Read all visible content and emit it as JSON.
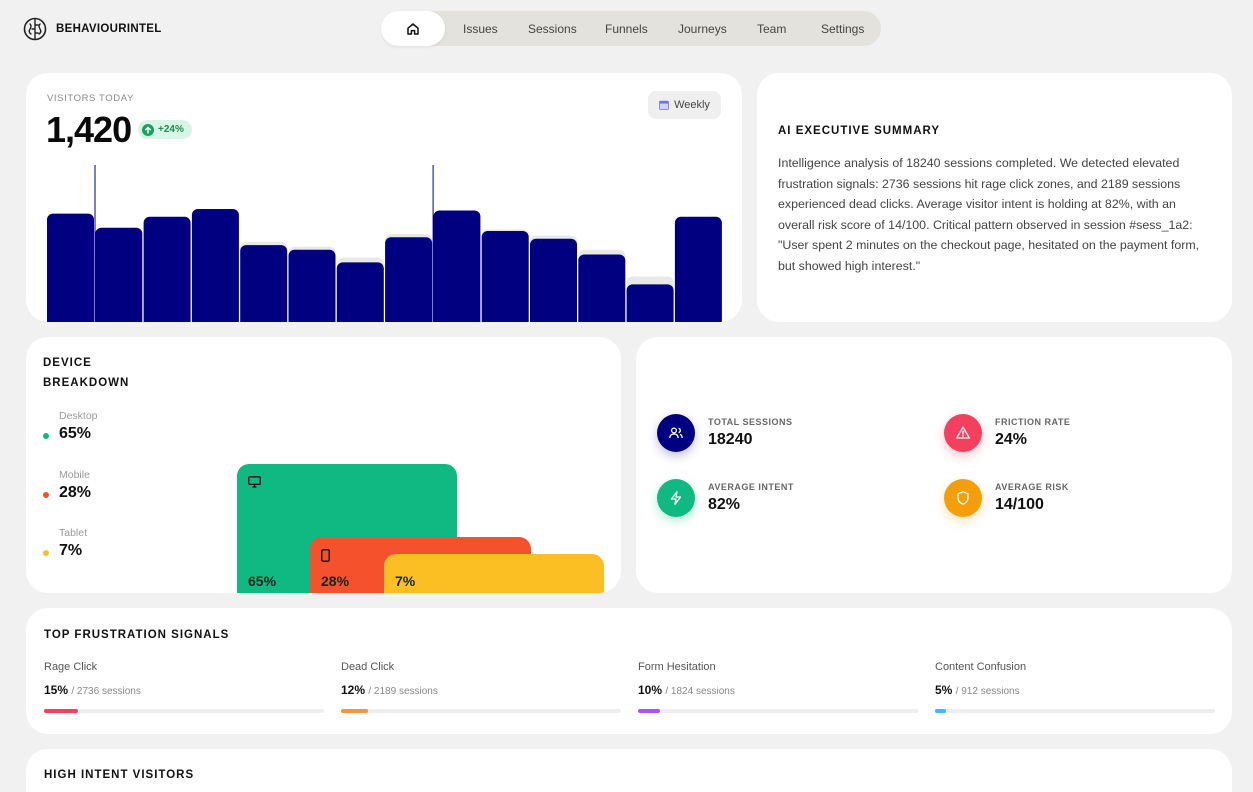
{
  "brand": {
    "name": "BEHAVIOURINTEL",
    "logo_icon": "brain-icon"
  },
  "nav": {
    "home_icon": "home-icon",
    "items": [
      "Issues",
      "Sessions",
      "Funnels",
      "Journeys",
      "Team",
      "Settings"
    ],
    "active": "home"
  },
  "visitors": {
    "label": "VISITORS TODAY",
    "value": "1,420",
    "change": "+24%",
    "period_button": "Weekly",
    "period_icon": "calendar-icon",
    "chart_data": {
      "type": "bar",
      "values": [
        69,
        60,
        67,
        72,
        49,
        46,
        38,
        54,
        71,
        58,
        53,
        43,
        24,
        67
      ],
      "background_values": [
        0,
        0,
        0,
        0,
        51,
        48,
        41,
        56,
        0,
        59,
        55,
        46,
        29,
        0
      ],
      "marker_indices": [
        1,
        8
      ],
      "bar_color": "#000080",
      "background_color": "#e8e8e8"
    }
  },
  "ai_summary": {
    "title": "AI EXECUTIVE SUMMARY",
    "text": "Intelligence analysis of 18240 sessions completed. We detected elevated frustration signals: 2736 sessions hit rage click zones, and 2189 sessions experienced dead clicks. Average visitor intent is holding at 82%, with an overall risk score of 14/100. Critical pattern observed in session #sess_1a2: \"User spent 2 minutes on the checkout page, hesitated on the payment form, but showed high interest.\""
  },
  "device": {
    "title_line1": "DEVICE",
    "title_line2": "BREAKDOWN",
    "items": [
      {
        "label": "Desktop",
        "value": "65%",
        "share": 65,
        "color": "#10b981",
        "icon": "monitor-icon"
      },
      {
        "label": "Mobile",
        "value": "28%",
        "share": 28,
        "color": "#f4512c",
        "icon": "phone-icon"
      },
      {
        "label": "Tablet",
        "value": "7%",
        "share": 7,
        "color": "#fbbf24",
        "icon": "tablet-icon"
      }
    ]
  },
  "stats": [
    {
      "label": "TOTAL SESSIONS",
      "value": "18240",
      "icon": "users-icon",
      "color": "#000080"
    },
    {
      "label": "FRICTION RATE",
      "value": "24%",
      "icon": "alert-triangle-icon",
      "color": "#f43f5e"
    },
    {
      "label": "AVERAGE INTENT",
      "value": "82%",
      "icon": "zap-icon",
      "color": "#10b981"
    },
    {
      "label": "AVERAGE RISK",
      "value": "14/100",
      "icon": "shield-icon",
      "color": "#f59e0b"
    }
  ],
  "frustration": {
    "title": "TOP FRUSTRATION SIGNALS",
    "items": [
      {
        "label": "Rage Click",
        "percent": "15%",
        "sessions": "/ 2736 sessions",
        "fraction": 0.15,
        "color": "#f43f5e"
      },
      {
        "label": "Dead Click",
        "percent": "12%",
        "sessions": "/ 2189 sessions",
        "fraction": 0.12,
        "color": "#fb923c"
      },
      {
        "label": "Form Hesitation",
        "percent": "10%",
        "sessions": "/ 1824 sessions",
        "fraction": 0.1,
        "color": "#a855f7"
      },
      {
        "label": "Content Confusion",
        "percent": "5%",
        "sessions": "/ 912 sessions",
        "fraction": 0.05,
        "color": "#38bdf8"
      }
    ]
  },
  "high_intent": {
    "title": "HIGH INTENT VISITORS"
  }
}
